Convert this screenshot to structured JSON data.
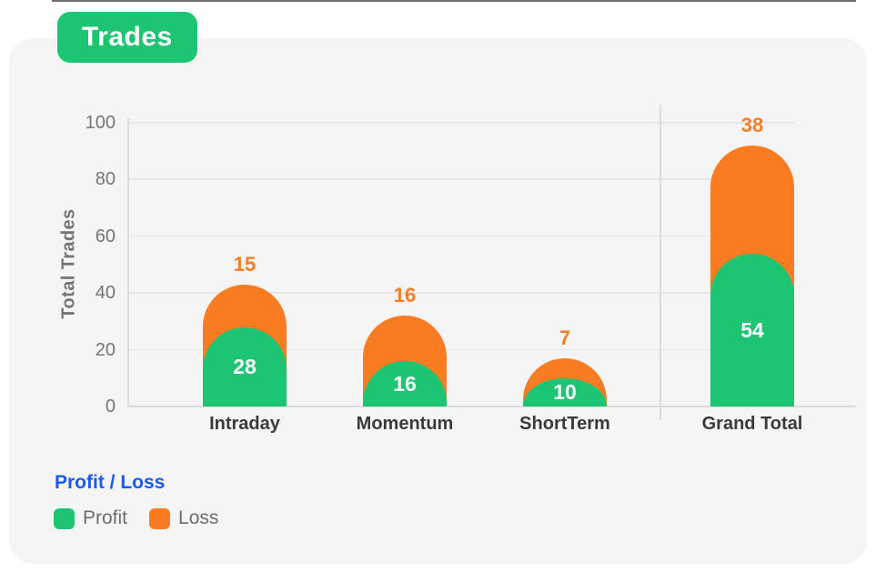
{
  "title": "Trades",
  "legend": {
    "title": "Profit / Loss",
    "items": [
      {
        "label": "Profit",
        "color": "#1dc472"
      },
      {
        "label": "Loss",
        "color": "#f97c22"
      }
    ]
  },
  "colors": {
    "profit_green": "#1dc472",
    "loss_orange": "#f97c22",
    "legend_title_blue": "#1a58ef",
    "card_bg": "#f5f5f6",
    "grid_line": "#e7e7ea",
    "axis_line": "#dcdcdf",
    "tick_text": "#757575",
    "category_text": "#3a3a3a",
    "legend_text": "#6d6d6d"
  },
  "chart_data": {
    "type": "bar",
    "stacked": true,
    "title": "Trades",
    "categories": [
      "Intraday",
      "Momentum",
      "ShortTerm",
      "Grand Total"
    ],
    "series": [
      {
        "name": "Profit",
        "color": "#1dc472",
        "values": [
          28,
          16,
          10,
          54
        ]
      },
      {
        "name": "Loss",
        "color": "#f97c22",
        "values": [
          15,
          16,
          7,
          38
        ]
      }
    ],
    "xlabel": "",
    "ylabel": "Total Trades",
    "ylim": [
      0,
      100
    ],
    "yticks": [
      0,
      20,
      40,
      60,
      80,
      100
    ],
    "grid": true,
    "bar_style": "rounded-top",
    "separator_before_category": "Grand Total",
    "legend_title": "Profit / Loss",
    "legend_position": "bottom-left"
  }
}
